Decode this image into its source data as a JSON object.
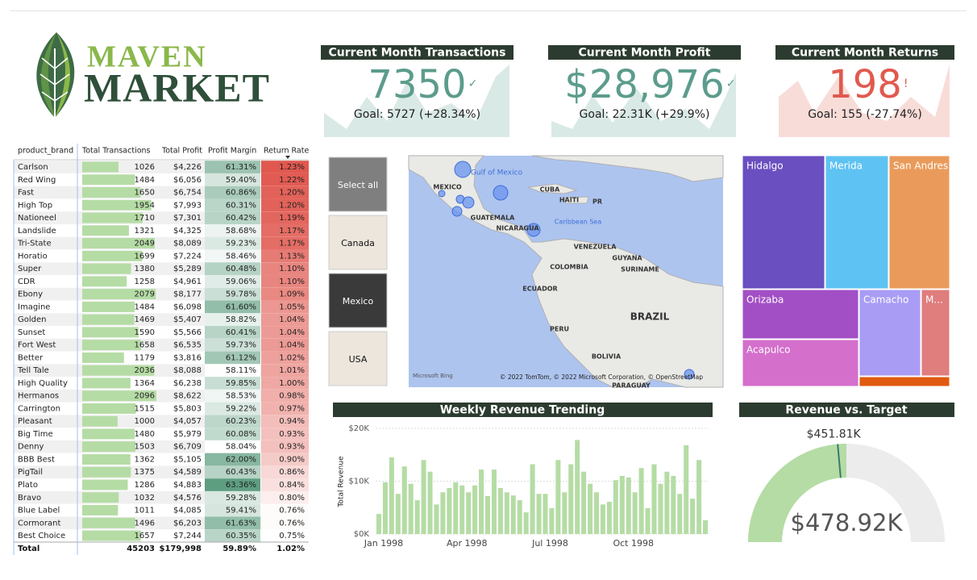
{
  "logo": {
    "line1": "MAVEN",
    "line2": "MARKET"
  },
  "kpis": [
    {
      "title": "Current Month Transactions",
      "value": "7350",
      "status": "✓",
      "goal": "Goal: 5727 (+28.34%)"
    },
    {
      "title": "Current Month Profit",
      "value": "$28,976",
      "status": "✓",
      "goal": "Goal: 22.31K (+29.9%)"
    },
    {
      "title": "Current Month Returns",
      "value": "198",
      "status": "!",
      "goal": "Goal: 155 (-27.74%)"
    }
  ],
  "table": {
    "columns": [
      "product_brand",
      "Total Transactions",
      "Total Profit",
      "Profit Margin",
      "Return Rate"
    ],
    "rows": [
      [
        "Carlson",
        1026,
        "$4,226",
        "61.31%",
        "1.23%"
      ],
      [
        "Red Wing",
        1484,
        "$6,056",
        "59.40%",
        "1.22%"
      ],
      [
        "Fast",
        1650,
        "$6,754",
        "60.86%",
        "1.20%"
      ],
      [
        "High Top",
        1954,
        "$7,993",
        "60.31%",
        "1.20%"
      ],
      [
        "Nationeel",
        1710,
        "$7,301",
        "60.42%",
        "1.19%"
      ],
      [
        "Landslide",
        1321,
        "$4,325",
        "58.68%",
        "1.17%"
      ],
      [
        "Tri-State",
        2049,
        "$8,089",
        "59.23%",
        "1.17%"
      ],
      [
        "Horatio",
        1699,
        "$7,224",
        "58.46%",
        "1.13%"
      ],
      [
        "Super",
        1380,
        "$5,289",
        "60.48%",
        "1.10%"
      ],
      [
        "CDR",
        1258,
        "$4,961",
        "59.06%",
        "1.10%"
      ],
      [
        "Ebony",
        2079,
        "$8,177",
        "59.78%",
        "1.09%"
      ],
      [
        "Imagine",
        1484,
        "$6,098",
        "61.60%",
        "1.05%"
      ],
      [
        "Golden",
        1469,
        "$5,407",
        "58.82%",
        "1.04%"
      ],
      [
        "Sunset",
        1590,
        "$5,566",
        "60.41%",
        "1.04%"
      ],
      [
        "Fort West",
        1658,
        "$6,535",
        "59.73%",
        "1.04%"
      ],
      [
        "Better",
        1179,
        "$3,816",
        "61.12%",
        "1.02%"
      ],
      [
        "Tell Tale",
        2036,
        "$8,088",
        "58.11%",
        "1.01%"
      ],
      [
        "High Quality",
        1364,
        "$6,238",
        "59.85%",
        "1.00%"
      ],
      [
        "Hermanos",
        2096,
        "$8,622",
        "58.53%",
        "0.98%"
      ],
      [
        "Carrington",
        1515,
        "$5,803",
        "59.22%",
        "0.97%"
      ],
      [
        "Pleasant",
        1000,
        "$4,057",
        "60.23%",
        "0.94%"
      ],
      [
        "Big Time",
        1480,
        "$5,979",
        "60.08%",
        "0.93%"
      ],
      [
        "Denny",
        1503,
        "$6,709",
        "58.04%",
        "0.93%"
      ],
      [
        "BBB Best",
        1362,
        "$5,105",
        "62.00%",
        "0.90%"
      ],
      [
        "PigTail",
        1375,
        "$4,589",
        "60.43%",
        "0.86%"
      ],
      [
        "Plato",
        1286,
        "$4,883",
        "63.36%",
        "0.84%"
      ],
      [
        "Bravo",
        1032,
        "$4,576",
        "59.28%",
        "0.80%"
      ],
      [
        "Blue Label",
        1011,
        "$4,085",
        "59.41%",
        "0.76%"
      ],
      [
        "Cormorant",
        1496,
        "$6,203",
        "61.63%",
        "0.76%"
      ],
      [
        "Best Choice",
        1657,
        "$7,244",
        "60.35%",
        "0.75%"
      ]
    ],
    "total": [
      "Total",
      45203,
      "$179,998",
      "59.89%",
      "1.02%"
    ]
  },
  "slicer": [
    "Select all",
    "Canada",
    "Mexico",
    "USA"
  ],
  "map": {
    "labels": [
      "Gulf of Mexico",
      "MEXICO",
      "CUBA",
      "HAITI",
      "PR",
      "Caribbean Sea",
      "GUATEMALA",
      "NICARAGUA",
      "VENEZUELA",
      "GUYANA",
      "SURINAME",
      "COLOMBIA",
      "ECUADOR",
      "PERU",
      "BRAZIL",
      "BOLIVIA",
      "PARAGUAY"
    ],
    "brand": "Microsoft Bing",
    "copyright": "© 2022 TomTom, © 2022 Microsoft Corporation, © OpenStreetMap"
  },
  "treemap": {
    "labels": [
      "Hidalgo",
      "Merida",
      "San Andres",
      "Orizaba",
      "Camacho",
      "M...",
      "Acapulco"
    ]
  },
  "chart_data": [
    {
      "type": "bar",
      "title": "Weekly Revenue Trending",
      "y_label": "Total Revenue",
      "categories": [
        "Jan 1998",
        null,
        null,
        null,
        null,
        null,
        null,
        null,
        null,
        null,
        null,
        null,
        null,
        "Apr 1998",
        null,
        null,
        null,
        null,
        null,
        null,
        null,
        null,
        null,
        null,
        null,
        null,
        "Jul 1998",
        null,
        null,
        null,
        null,
        null,
        null,
        null,
        null,
        null,
        null,
        null,
        null,
        "Oct 1998",
        null,
        null,
        null,
        null,
        null,
        null,
        null,
        null,
        null,
        null,
        null,
        null
      ],
      "values": [
        3800,
        9800,
        14500,
        7600,
        12800,
        9500,
        6400,
        14000,
        11800,
        5600,
        7900,
        8700,
        9800,
        9200,
        7900,
        9200,
        12200,
        7200,
        12200,
        8700,
        7900,
        7300,
        6400,
        4100,
        13200,
        7600,
        7600,
        4900,
        14000,
        7900,
        13200,
        17800,
        11800,
        9500,
        7900,
        5600,
        6100,
        10200,
        11000,
        10700,
        7900,
        12500,
        4900,
        13200,
        9500,
        11800,
        11000,
        7600,
        16800,
        6700,
        14000,
        2600
      ],
      "color": "#b5dca5",
      "ylim": [
        0,
        20000
      ],
      "yticks": [
        {
          "value": 0,
          "label": "$0K"
        },
        {
          "value": 10000,
          "label": "$10K"
        },
        {
          "value": 20000,
          "label": "$20K"
        }
      ],
      "grid": true
    },
    {
      "type": "gauge",
      "title": "Revenue vs. Target",
      "value": 478920,
      "value_label": "$478.92K",
      "target": 451810,
      "target_label": "$451.81K",
      "range": [
        0,
        957840
      ],
      "color": "#b5dca5",
      "target_color": "#3a7a6a"
    }
  ]
}
